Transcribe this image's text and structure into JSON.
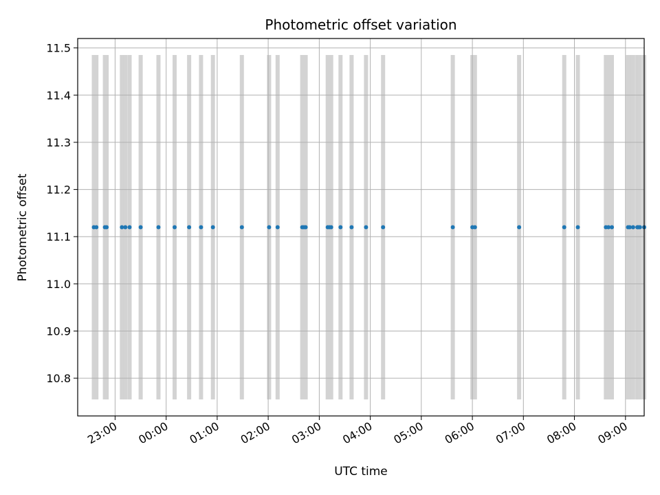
{
  "chart_data": {
    "type": "scatter",
    "title": "Photometric offset variation",
    "xlabel": "UTC time",
    "ylabel": "Photometric offset",
    "x_axis_type": "time",
    "x_ticks": [
      "23:00",
      "00:00",
      "01:00",
      "02:00",
      "03:00",
      "04:00",
      "05:00",
      "06:00",
      "07:00",
      "08:00",
      "09:00"
    ],
    "xlim": [
      "22:16",
      "09:22"
    ],
    "ylim": [
      10.72,
      11.52
    ],
    "y_ticks": [
      10.8,
      10.9,
      11.0,
      11.1,
      11.2,
      11.3,
      11.4,
      11.5
    ],
    "grid": true,
    "point_color": "#1f77b4",
    "band_color": "#d3d3d3",
    "band_y_range": [
      10.755,
      11.485
    ],
    "series": [
      {
        "x": [
          "22:35",
          "22:38",
          "22:48",
          "22:50",
          "23:08",
          "23:12",
          "23:17",
          "23:30",
          "23:51",
          "00:10",
          "00:27",
          "00:41",
          "00:55",
          "01:29",
          "02:01",
          "02:11",
          "02:40",
          "02:42",
          "02:44",
          "03:10",
          "03:12",
          "03:14",
          "03:25",
          "03:38",
          "03:55",
          "04:15",
          "05:37",
          "06:00",
          "06:03",
          "06:55",
          "07:48",
          "08:04",
          "08:37",
          "08:40",
          "08:44",
          "09:03",
          "09:05",
          "09:09",
          "09:14",
          "09:15",
          "09:17",
          "09:22"
        ],
        "y": [
          11.12,
          11.12,
          11.12,
          11.12,
          11.12,
          11.12,
          11.12,
          11.12,
          11.12,
          11.12,
          11.12,
          11.12,
          11.12,
          11.12,
          11.12,
          11.12,
          11.12,
          11.12,
          11.12,
          11.12,
          11.12,
          11.12,
          11.12,
          11.12,
          11.12,
          11.12,
          11.12,
          11.12,
          11.12,
          11.12,
          11.12,
          11.12,
          11.12,
          11.12,
          11.12,
          11.12,
          11.12,
          11.12,
          11.12,
          11.12,
          11.12,
          11.12
        ]
      }
    ]
  }
}
